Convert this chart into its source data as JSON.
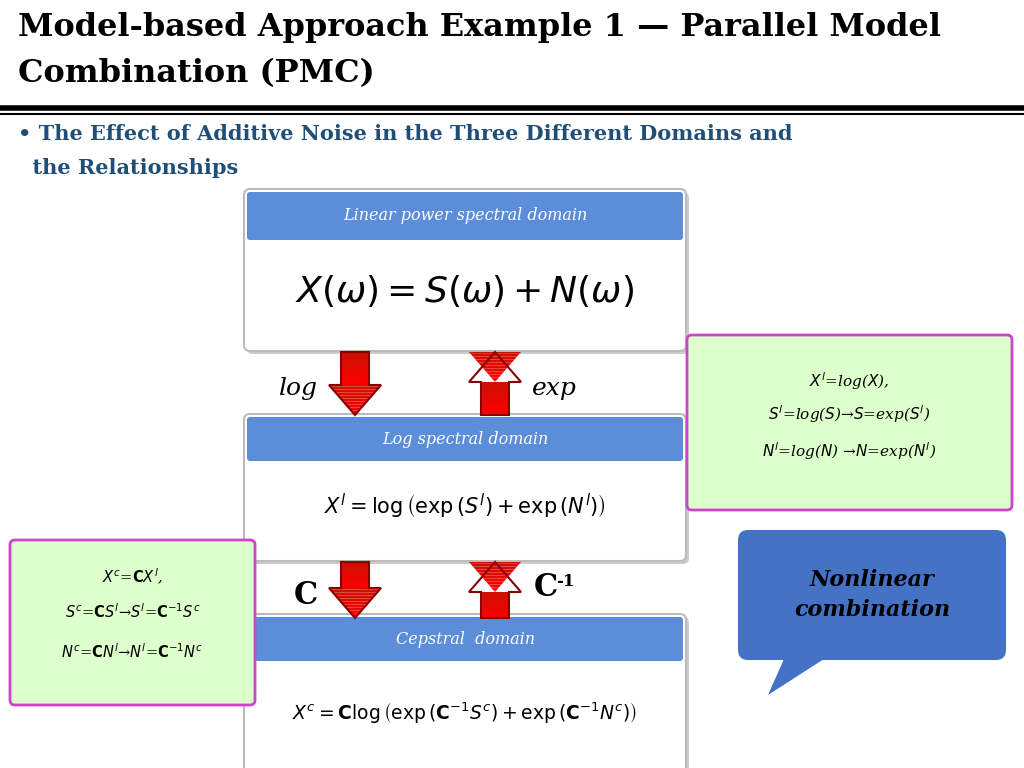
{
  "title_line1": "Model-based Approach Example 1 — Parallel Model",
  "title_line2": "Combination (PMC)",
  "bullet_line1": "• The Effect of Additive Noise in the Three Different Domains and",
  "bullet_line2": "  the Relationships",
  "domain1_label": "Linear power spectral domain",
  "domain1_formula": "$X(\\omega)=S(\\omega) +N(\\omega)$",
  "domain2_label": "Log spectral domain",
  "domain2_formula": "$X^l = \\log\\left(\\exp\\left(S^l\\right)+\\exp\\left(N^l\\right)\\right)$",
  "domain3_label": "Cepstral  domain",
  "domain3_formula": "$X^c = \\mathbf{C}\\log\\left(\\exp\\left(\\mathbf{C}^{-1}S^c\\right)+\\exp\\left(\\mathbf{C}^{-1}N^c\\right)\\right)$",
  "log_label": "log",
  "exp_label": "exp",
  "C_label": "C",
  "Cinv_label": "C",
  "green_box1_line1": "$X^l$=log($X$),",
  "green_box1_line2": "$S^l$=log($S$)→$S$=exp($S^l$)",
  "green_box1_line3": "$N^l$=log($N$) →$N$=exp($N^l$)",
  "green_box2_line1": "$X^c$=$\\mathbf{C}X^l$,",
  "green_box2_line2": "$S^c$=$\\mathbf{C}S^l$→$S^l$=$\\mathbf{C}^{-1}S^c$",
  "green_box2_line3": "$N^c$=$\\mathbf{C}N^l$→$N^l$=$\\mathbf{C}^{-1}N^c$",
  "callout_text": "Nonlinear\ncombination",
  "bg_color": "#ffffff",
  "title_color": "#000000",
  "bullet_color": "#1F4E79",
  "domain_bar_color": "#5B8DD9",
  "green_box_color": "#DDFFCC",
  "green_box_border": "#CC44CC",
  "callout_color": "#4472C4",
  "arrow_color": "#CC1100",
  "arrow_white": "#ffffff"
}
